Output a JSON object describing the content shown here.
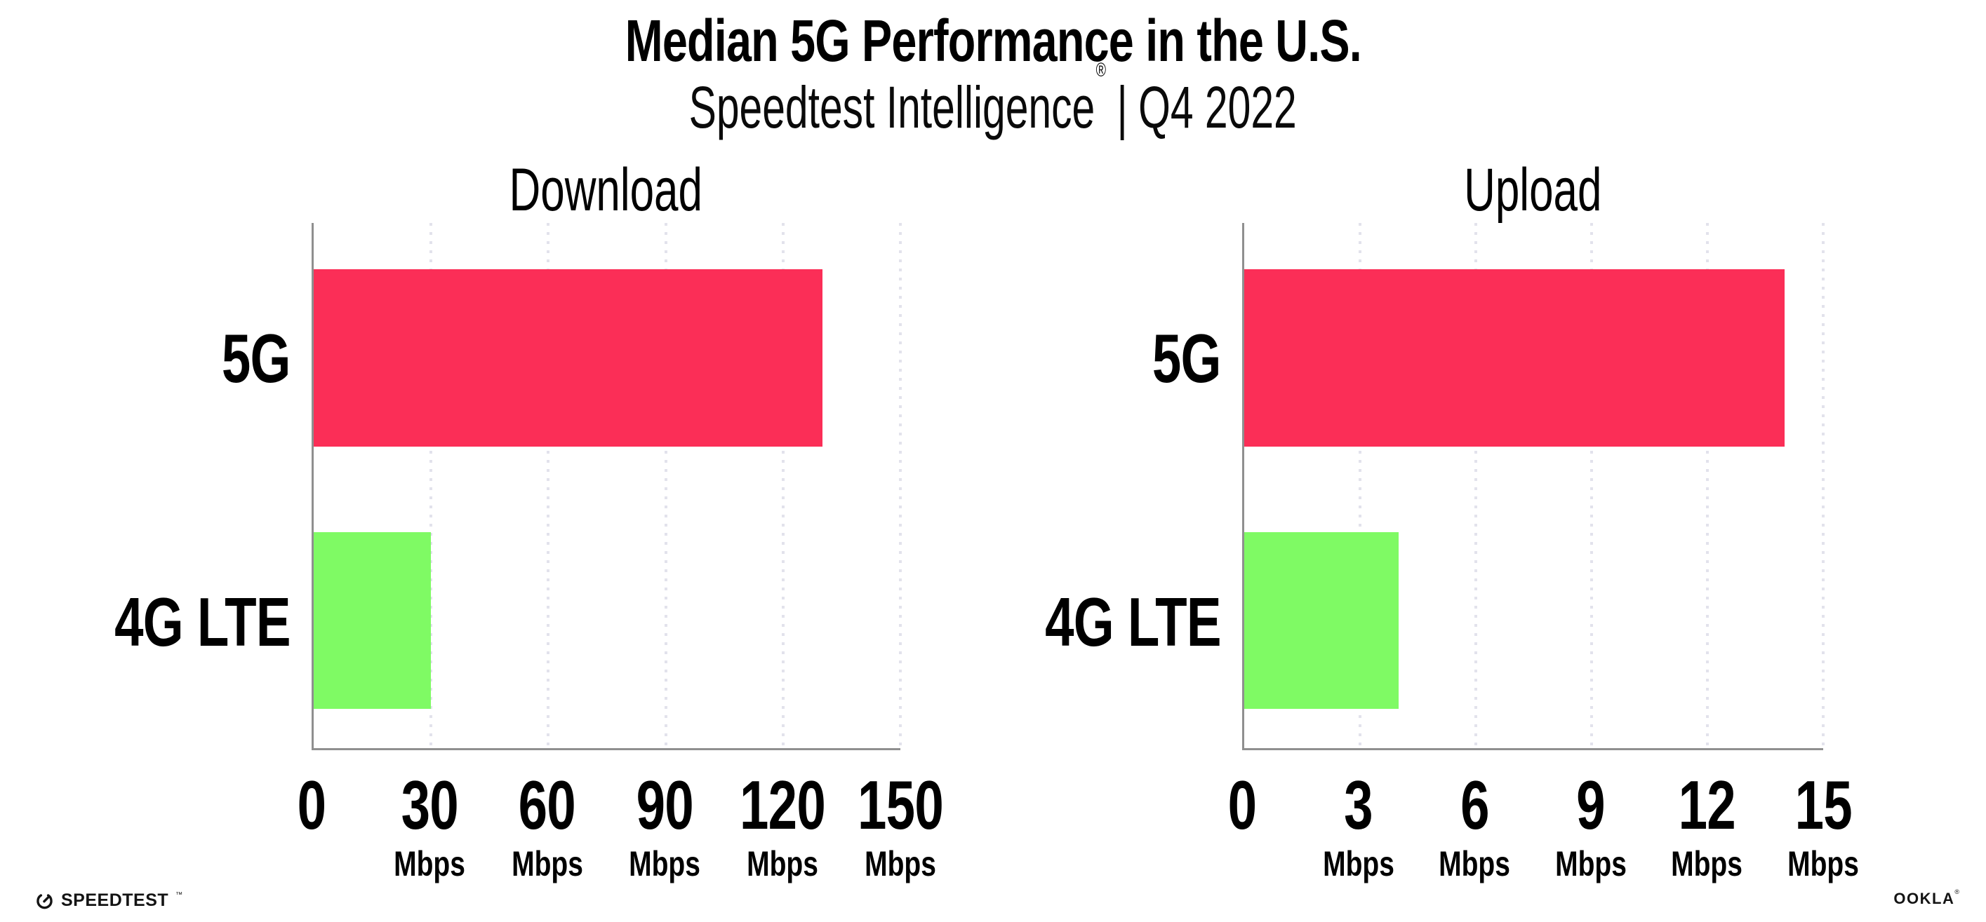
{
  "header": {
    "title": "Median 5G Performance in the U.S.",
    "subtitle": {
      "brand": "Speedtest Intelligence",
      "registered_mark": "®",
      "separator": "|",
      "period": "Q4 2022"
    }
  },
  "chart_data": [
    {
      "type": "bar",
      "orientation": "horizontal",
      "title": "Download",
      "categories": [
        "5G",
        "4G LTE"
      ],
      "values": [
        130,
        30
      ],
      "value_unit": "Mbps",
      "bar_colors": [
        "#FB2E57",
        "#7FFA64"
      ],
      "xlim": [
        0,
        150
      ],
      "xticks": [
        0,
        30,
        60,
        90,
        120,
        150
      ],
      "xtick_unit_label": "Mbps",
      "xtick_unit_on_zero": false,
      "grid": "vertical dotted gridlines at each tick",
      "legend": "none"
    },
    {
      "type": "bar",
      "orientation": "horizontal",
      "title": "Upload",
      "categories": [
        "5G",
        "4G LTE"
      ],
      "values": [
        14,
        4
      ],
      "value_unit": "Mbps",
      "bar_colors": [
        "#FB2E57",
        "#7FFA64"
      ],
      "xlim": [
        0,
        15
      ],
      "xticks": [
        0,
        3,
        6,
        9,
        12,
        15
      ],
      "xtick_unit_label": "Mbps",
      "xtick_unit_on_zero": false,
      "grid": "vertical dotted gridlines at each tick",
      "legend": "none"
    }
  ],
  "footer": {
    "speedtest_logo_text": "SPEEDTEST",
    "speedtest_trademark": "™",
    "ookla_logo_text": "OOKLA",
    "ookla_registered": "®"
  },
  "colors": {
    "bar_5g": "#FB2E57",
    "bar_4g_lte": "#7FFA64",
    "axis_line": "#8F8F8F",
    "gridline": "#E2E2EC",
    "text": "#000000",
    "background": "#FFFFFF"
  }
}
